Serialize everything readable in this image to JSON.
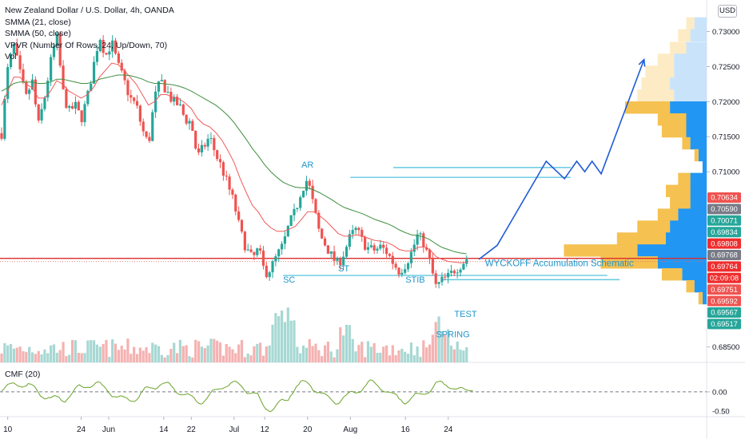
{
  "header": {
    "title": "New Zealand Dollar / U.S. Dollar, 4h, OANDA",
    "indicators": [
      "SMMA (21, close)",
      "SMMA (50, close)",
      "VPVR (Number Of Rows, 24, Up/Down, 70)",
      "Vol"
    ],
    "currency_badge": "USD"
  },
  "cmf": {
    "label": "CMF (20)",
    "ticks": [
      "0.00",
      "-0.50"
    ]
  },
  "annotations": {
    "schematic": "WYCKOFF Accumulation Schematic",
    "labels": [
      {
        "text": "AR",
        "t": 49,
        "price": 0.7106
      },
      {
        "text": "SC",
        "t": 46,
        "price": 0.6942
      },
      {
        "text": "ST",
        "t": 55,
        "price": 0.6958
      },
      {
        "text": "STIB",
        "t": 66,
        "price": 0.6942
      },
      {
        "text": "SPRING",
        "t": 71,
        "price": 0.6864
      },
      {
        "text": "TEST",
        "t": 74,
        "price": 0.6893
      }
    ]
  },
  "colors": {
    "up": "#26a69a",
    "down": "#ef5350",
    "smma21": "#f05a5a",
    "smma50": "#3f8f3f",
    "annot": "#2196c9",
    "level_line": "#dd2c2c",
    "path": "#1f5bd6",
    "cmf": "#6ba32a",
    "vp_up": "#2196f3",
    "vp_down": "#f5c150"
  },
  "chart_data": {
    "type": "candlestick",
    "symbol": "NZDUSD",
    "timeframe": "4h",
    "ylim": [
      0.6828,
      0.7345
    ],
    "y_ticks": [
      "0.73000",
      "0.72500",
      "0.72000",
      "0.71500",
      "0.71000",
      "0.68500"
    ],
    "x_ticks": [
      "10",
      "24",
      "Jun",
      "14",
      "22",
      "Jul",
      "12",
      "20",
      "Aug",
      "16",
      "24"
    ],
    "price_labels": [
      {
        "text": "0.70634",
        "color": "#ef5350"
      },
      {
        "text": "0.70590",
        "color": "#787b86"
      },
      {
        "text": "0.70071",
        "color": "#26a69a"
      },
      {
        "text": "0.69834",
        "color": "#26a69a"
      },
      {
        "text": "0.69808",
        "color": "#ef2d2d"
      },
      {
        "text": "0.69768",
        "color": "#787b86"
      },
      {
        "text": "0.69764",
        "color": "#ef2d2d"
      },
      {
        "text": "02:09:08",
        "color": "#ef2d2d"
      },
      {
        "text": "0.69751",
        "color": "#ef5350"
      },
      {
        "text": "0.69592",
        "color": "#ef5350"
      },
      {
        "text": "0.69567",
        "color": "#26a69a"
      },
      {
        "text": "0.69517",
        "color": "#26a69a"
      }
    ],
    "close_path": [
      0.7155,
      0.7245,
      0.728,
      0.724,
      0.7205,
      0.723,
      0.7165,
      0.7205,
      0.7255,
      0.7295,
      0.7215,
      0.7185,
      0.7195,
      0.7175,
      0.7205,
      0.725,
      0.7295,
      0.7265,
      0.7285,
      0.7252,
      0.723,
      0.7205,
      0.7195,
      0.716,
      0.7138,
      0.7205,
      0.723,
      0.7215,
      0.72,
      0.7195,
      0.7175,
      0.717,
      0.712,
      0.7135,
      0.715,
      0.7125,
      0.7105,
      0.708,
      0.7055,
      0.7015,
      0.699,
      0.6975,
      0.699,
      0.6955,
      0.6962,
      0.698,
      0.6995,
      0.7025,
      0.7043,
      0.7075,
      0.709,
      0.705,
      0.701,
      0.6995,
      0.6978,
      0.6968,
      0.6985,
      0.7008,
      0.7018,
      0.7,
      0.699,
      0.6988,
      0.6993,
      0.6985,
      0.697,
      0.6958,
      0.6968,
      0.6985,
      0.701,
      0.6998,
      0.697,
      0.6935,
      0.6945,
      0.695,
      0.696,
      0.6967,
      0.6976
    ],
    "smma21": [
      0.7195,
      0.7215,
      0.7235,
      0.7235,
      0.7225,
      0.722,
      0.7205,
      0.7205,
      0.7215,
      0.723,
      0.7225,
      0.7215,
      0.721,
      0.7205,
      0.721,
      0.722,
      0.7235,
      0.7245,
      0.7255,
      0.7253,
      0.7245,
      0.7235,
      0.7225,
      0.721,
      0.7195,
      0.72,
      0.721,
      0.721,
      0.7206,
      0.7204,
      0.7198,
      0.719,
      0.7176,
      0.7168,
      0.7164,
      0.7156,
      0.7145,
      0.713,
      0.7113,
      0.709,
      0.707,
      0.7052,
      0.7042,
      0.7028,
      0.702,
      0.7015,
      0.7015,
      0.7018,
      0.7022,
      0.7032,
      0.7043,
      0.7043,
      0.7037,
      0.703,
      0.7021,
      0.7012,
      0.7008,
      0.7008,
      0.701,
      0.7008,
      0.7005,
      0.7002,
      0.7001,
      0.6999,
      0.6995,
      0.6989,
      0.6987,
      0.6987,
      0.6992,
      0.6993,
      0.6989,
      0.6979,
      0.6975,
      0.6972,
      0.6971,
      0.697,
      0.6971
    ],
    "smma50": [
      0.7215,
      0.722,
      0.7226,
      0.7228,
      0.7228,
      0.7228,
      0.7226,
      0.7226,
      0.7228,
      0.7232,
      0.7232,
      0.723,
      0.7228,
      0.7226,
      0.7226,
      0.7228,
      0.7232,
      0.7234,
      0.7236,
      0.7238,
      0.7238,
      0.7237,
      0.7235,
      0.7232,
      0.7228,
      0.7226,
      0.7226,
      0.7225,
      0.7224,
      0.7222,
      0.7219,
      0.7215,
      0.721,
      0.7205,
      0.72,
      0.7195,
      0.7188,
      0.718,
      0.717,
      0.7158,
      0.7146,
      0.7133,
      0.7122,
      0.711,
      0.71,
      0.7092,
      0.7085,
      0.7081,
      0.7078,
      0.7077,
      0.7077,
      0.7074,
      0.707,
      0.7065,
      0.706,
      0.7054,
      0.7049,
      0.7046,
      0.7043,
      0.704,
      0.7036,
      0.7032,
      0.7029,
      0.7026,
      0.7022,
      0.7017,
      0.7013,
      0.701,
      0.7009,
      0.7007,
      0.7003,
      0.6997,
      0.6992,
      0.6989,
      0.6986,
      0.6984,
      0.6983
    ],
    "resistance_lines": [
      {
        "price": 0.7106,
        "t_from": 64,
        "t_to": 93
      },
      {
        "price": 0.7092,
        "t_from": 57,
        "t_to": 93
      }
    ],
    "support_lines": [
      {
        "price": 0.6952,
        "t_from": 46,
        "t_to": 99
      },
      {
        "price": 0.6946,
        "t_from": 72,
        "t_to": 101
      }
    ],
    "current_level": 0.69764,
    "projection": [
      {
        "t": 78,
        "price": 0.6975
      },
      {
        "t": 81,
        "price": 0.6995
      },
      {
        "t": 89,
        "price": 0.7115
      },
      {
        "t": 92,
        "price": 0.709
      },
      {
        "t": 94,
        "price": 0.7115
      },
      {
        "t": 95.3,
        "price": 0.71
      },
      {
        "t": 96.5,
        "price": 0.7115
      },
      {
        "t": 98,
        "price": 0.7097
      },
      {
        "t": 105,
        "price": 0.726
      }
    ],
    "volume_profile": [
      {
        "price": 0.7311,
        "up": 3,
        "down": 2,
        "faded": true
      },
      {
        "price": 0.7294,
        "up": 4,
        "down": 3,
        "faded": true
      },
      {
        "price": 0.7276,
        "up": 5,
        "down": 4,
        "faded": true
      },
      {
        "price": 0.7259,
        "up": 8,
        "down": 4,
        "faded": true
      },
      {
        "price": 0.7242,
        "up": 8,
        "down": 7,
        "faded": true
      },
      {
        "price": 0.7225,
        "up": 9,
        "down": 7,
        "faded": true
      },
      {
        "price": 0.7208,
        "up": 8,
        "down": 9,
        "faded": true
      },
      {
        "price": 0.7191,
        "up": 9,
        "down": 11
      },
      {
        "price": 0.7174,
        "up": 5,
        "down": 7
      },
      {
        "price": 0.7157,
        "up": 5,
        "down": 6
      },
      {
        "price": 0.714,
        "up": 4,
        "down": 2
      },
      {
        "price": 0.7123,
        "up": 2,
        "down": 1
      },
      {
        "price": 0.7106,
        "up": 1,
        "down": 0
      },
      {
        "price": 0.7089,
        "up": 4,
        "down": 3
      },
      {
        "price": 0.7072,
        "up": 4,
        "down": 6
      },
      {
        "price": 0.7055,
        "up": 4,
        "down": 5
      },
      {
        "price": 0.7038,
        "up": 7,
        "down": 5
      },
      {
        "price": 0.7021,
        "up": 9,
        "down": 8
      },
      {
        "price": 0.7004,
        "up": 10,
        "down": 12
      },
      {
        "price": 0.6987,
        "up": 17,
        "down": 18
      },
      {
        "price": 0.697,
        "up": 12,
        "down": 14
      },
      {
        "price": 0.6953,
        "up": 6,
        "down": 5
      },
      {
        "price": 0.6936,
        "up": 3,
        "down": 2
      },
      {
        "price": 0.6919,
        "up": 1,
        "down": 1
      }
    ]
  }
}
